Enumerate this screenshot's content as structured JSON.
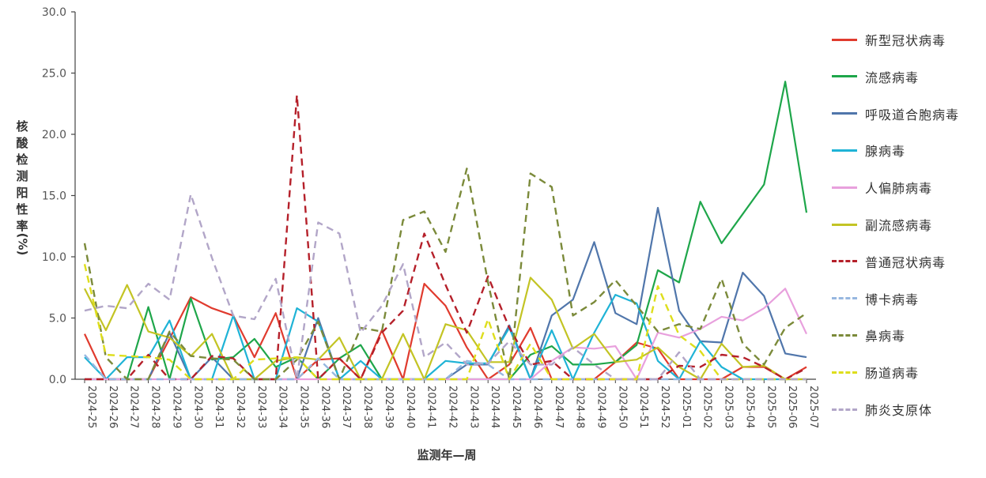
{
  "chart_data": {
    "type": "line",
    "title": "",
    "xlabel": "监测年—周",
    "ylabel": "核酸检测阳性率(%)",
    "ylim": [
      0,
      30
    ],
    "yticks": [
      "0.0",
      "5.0",
      "10.0",
      "15.0",
      "20.0",
      "25.0",
      "30.0"
    ],
    "grid": false,
    "legend_position": "right",
    "categories": [
      "2024-25",
      "2024-26",
      "2024-27",
      "2024-28",
      "2024-29",
      "2024-30",
      "2024-31",
      "2024-32",
      "2024-33",
      "2024-34",
      "2024-35",
      "2024-36",
      "2024-37",
      "2024-38",
      "2024-39",
      "2024-40",
      "2024-41",
      "2024-42",
      "2024-43",
      "2024-44",
      "2024-45",
      "2024-46",
      "2024-47",
      "2024-48",
      "2024-49",
      "2024-50",
      "2024-51",
      "2024-52",
      "2025-01",
      "2025-02",
      "2025-03",
      "2025-04",
      "2025-05",
      "2025-06",
      "2025-07"
    ],
    "series": [
      {
        "name": "新型冠状病毒",
        "color": "#e03b2e",
        "dashed": false,
        "values": [
          3.7,
          0.0,
          0.0,
          0.0,
          3.3,
          6.7,
          5.8,
          5.2,
          1.8,
          5.4,
          0.0,
          1.6,
          1.7,
          0.0,
          4.0,
          0.0,
          7.8,
          6.0,
          2.6,
          0.0,
          1.2,
          4.2,
          0.0,
          0.0,
          0.0,
          1.4,
          3.0,
          2.5,
          0.0,
          0.0,
          0.0,
          1.0,
          1.0,
          0.0,
          1.0
        ]
      },
      {
        "name": "流感病毒",
        "color": "#1ea64a",
        "dashed": false,
        "values": [
          0.0,
          0.0,
          0.0,
          5.9,
          0.0,
          6.6,
          1.6,
          1.8,
          3.3,
          1.0,
          1.8,
          0.0,
          1.7,
          2.8,
          0.0,
          0.0,
          0.0,
          0.0,
          0.0,
          0.0,
          0.0,
          2.0,
          2.7,
          1.2,
          1.2,
          1.4,
          2.8,
          8.9,
          7.9,
          14.5,
          11.1,
          13.5,
          15.9,
          24.3,
          13.6
        ]
      },
      {
        "name": "呼吸道合胞病毒",
        "color": "#5076ab",
        "dashed": false,
        "values": [
          0.0,
          0.0,
          0.0,
          0.0,
          3.8,
          0.0,
          1.8,
          0.0,
          0.0,
          0.0,
          0.0,
          5.0,
          0.0,
          0.0,
          0.0,
          0.0,
          0.0,
          0.0,
          1.2,
          1.2,
          4.4,
          0.0,
          5.2,
          6.5,
          11.2,
          5.4,
          4.5,
          14.0,
          5.6,
          3.1,
          3.0,
          8.7,
          6.8,
          2.1,
          1.8
        ]
      },
      {
        "name": "腺病毒",
        "color": "#1fb3d6",
        "dashed": false,
        "values": [
          1.8,
          0.0,
          1.8,
          1.8,
          4.8,
          0.0,
          0.0,
          5.2,
          0.0,
          0.0,
          5.8,
          4.7,
          0.0,
          1.5,
          0.0,
          0.0,
          0.0,
          1.5,
          1.3,
          1.3,
          4.2,
          0.0,
          4.0,
          0.0,
          3.8,
          6.9,
          6.2,
          1.5,
          0.0,
          3.1,
          1.0,
          0.0,
          0.0,
          0.0,
          0.0
        ]
      },
      {
        "name": "人偏肺病毒",
        "color": "#e8a0dd",
        "dashed": false,
        "values": [
          0.0,
          0.0,
          0.0,
          0.0,
          0.0,
          0.0,
          0.0,
          0.0,
          0.0,
          0.0,
          0.0,
          0.0,
          0.0,
          0.0,
          0.0,
          0.0,
          0.0,
          0.0,
          0.0,
          0.0,
          0.0,
          0.0,
          1.5,
          2.6,
          2.5,
          2.7,
          0.0,
          3.8,
          3.4,
          4.1,
          5.1,
          4.8,
          5.8,
          7.4,
          3.7
        ]
      },
      {
        "name": "副流感病毒",
        "color": "#c3c424",
        "dashed": false,
        "values": [
          7.4,
          4.0,
          7.7,
          3.9,
          3.4,
          1.9,
          3.7,
          0.0,
          0.0,
          1.5,
          1.8,
          1.6,
          3.4,
          0.0,
          0.0,
          3.7,
          0.0,
          4.5,
          4.0,
          1.4,
          1.4,
          8.3,
          6.5,
          2.5,
          3.7,
          1.4,
          1.6,
          2.6,
          1.0,
          0.0,
          2.9,
          1.0,
          1.1,
          0.0,
          0.0
        ]
      },
      {
        "name": "普通冠状病毒",
        "color": "#b5202a",
        "dashed": true,
        "values": [
          0.0,
          0.0,
          0.0,
          2.0,
          0.0,
          0.0,
          1.9,
          1.7,
          0.0,
          0.0,
          23.2,
          0.0,
          1.7,
          0.0,
          3.8,
          5.6,
          11.9,
          7.7,
          3.8,
          8.4,
          4.2,
          1.2,
          1.5,
          0.0,
          0.0,
          0.0,
          0.0,
          0.0,
          1.1,
          1.0,
          2.0,
          1.8,
          1.0,
          0.0,
          0.9
        ]
      },
      {
        "name": "博卡病毒",
        "color": "#97b7e0",
        "dashed": true,
        "values": [
          2.0,
          0.0,
          0.0,
          0.0,
          0.0,
          0.0,
          0.0,
          0.0,
          0.0,
          0.0,
          0.0,
          1.7,
          0.0,
          0.0,
          0.0,
          0.0,
          0.0,
          0.0,
          1.5,
          1.2,
          0.0,
          0.0,
          0.0,
          0.0,
          0.0,
          0.0,
          0.0,
          0.0,
          0.0,
          0.0,
          0.0,
          0.0,
          0.0,
          0.0,
          0.0
        ]
      },
      {
        "name": "鼻病毒",
        "color": "#7b8a3a",
        "dashed": true,
        "values": [
          11.1,
          1.8,
          0.0,
          0.0,
          3.9,
          1.9,
          1.7,
          1.6,
          0.0,
          0.0,
          1.6,
          4.7,
          0.0,
          4.2,
          3.9,
          13.0,
          13.7,
          10.4,
          17.2,
          7.9,
          0.0,
          16.8,
          15.7,
          5.2,
          6.3,
          8.1,
          6.0,
          3.9,
          4.5,
          4.1,
          8.2,
          2.9,
          1.2,
          4.2,
          5.4
        ]
      },
      {
        "name": "肠道病毒",
        "color": "#dede1c",
        "dashed": true,
        "values": [
          9.4,
          2.0,
          1.9,
          1.8,
          1.6,
          0.0,
          0.0,
          0.0,
          1.6,
          1.7,
          1.8,
          0.0,
          0.0,
          0.0,
          0.0,
          0.0,
          0.0,
          0.0,
          0.0,
          4.9,
          0.0,
          2.9,
          0.0,
          0.0,
          0.0,
          0.0,
          0.0,
          7.6,
          3.6,
          2.3,
          0.0,
          0.0,
          0.0,
          0.0,
          0.0
        ]
      },
      {
        "name": "肺炎支原体",
        "color": "#b2a6c8",
        "dashed": true,
        "values": [
          5.6,
          6.0,
          5.8,
          7.8,
          6.5,
          15.1,
          9.9,
          5.2,
          4.9,
          8.2,
          0.0,
          12.8,
          11.9,
          3.8,
          6.0,
          9.4,
          1.8,
          3.0,
          1.2,
          1.3,
          3.1,
          1.2,
          1.2,
          2.6,
          1.2,
          0.0,
          0.0,
          0.0,
          2.2,
          0.0,
          0.0,
          0.0,
          0.0,
          0.0,
          0.0
        ]
      }
    ]
  }
}
